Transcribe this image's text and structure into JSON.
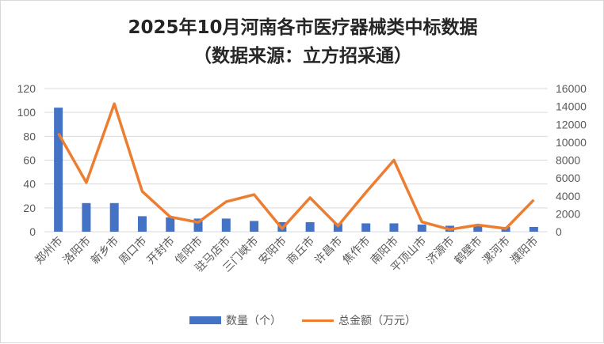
{
  "chart_data": {
    "type": "bar+line",
    "title": "2025年10月河南各市医疗器械类中标数据",
    "subtitle": "（数据来源：立方招采通）",
    "categories": [
      "郑州市",
      "洛阳市",
      "新乡市",
      "周口市",
      "开封市",
      "信阳市",
      "驻马店市",
      "三门峡市",
      "安阳市",
      "商丘市",
      "许昌市",
      "焦作市",
      "南阳市",
      "平顶山市",
      "济源市",
      "鹤壁市",
      "漯河市",
      "濮阳市"
    ],
    "series": [
      {
        "name": "数量（个）",
        "type": "bar",
        "axis": "left",
        "color": "#4472c4",
        "values": [
          104,
          24,
          24,
          13,
          12,
          11,
          11,
          9,
          8,
          8,
          7,
          7,
          7,
          6,
          5,
          5,
          4,
          4
        ]
      },
      {
        "name": "总金额（万元）",
        "type": "line",
        "axis": "right",
        "color": "#ed7d31",
        "values": [
          11000,
          5500,
          14300,
          4500,
          1650,
          1050,
          3350,
          4150,
          350,
          3800,
          650,
          4400,
          8000,
          1100,
          250,
          750,
          350,
          3550
        ]
      }
    ],
    "left_axis": {
      "ylim": [
        0,
        120
      ],
      "ticks": [
        "0",
        "20",
        "40",
        "60",
        "80",
        "100",
        "120"
      ]
    },
    "right_axis": {
      "ylim": [
        0,
        16000
      ],
      "ticks": [
        "0",
        "2000",
        "4000",
        "6000",
        "8000",
        "10000",
        "12000",
        "14000",
        "16000"
      ]
    },
    "grid": true,
    "legend": "bottom"
  }
}
